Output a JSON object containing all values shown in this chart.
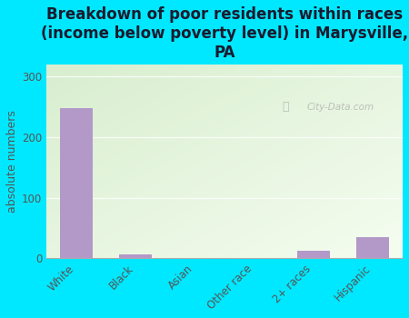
{
  "title": "Breakdown of poor residents within races\n(income below poverty level) in Marysville,\nPA",
  "categories": [
    "White",
    "Black",
    "Asian",
    "Other race",
    "2+ races",
    "Hispanic"
  ],
  "values": [
    248,
    7,
    0,
    0,
    12,
    35
  ],
  "bar_color": "#b399c8",
  "ylabel": "absolute numbers",
  "ylim": [
    0,
    320
  ],
  "yticks": [
    0,
    100,
    200,
    300
  ],
  "background_color": "#00e8ff",
  "plot_bg_color_topleft": "#d8eecf",
  "plot_bg_color_bottomright": "#f5fdf0",
  "watermark": "City-Data.com",
  "title_fontsize": 12,
  "tick_fontsize": 8.5,
  "ylabel_fontsize": 9
}
